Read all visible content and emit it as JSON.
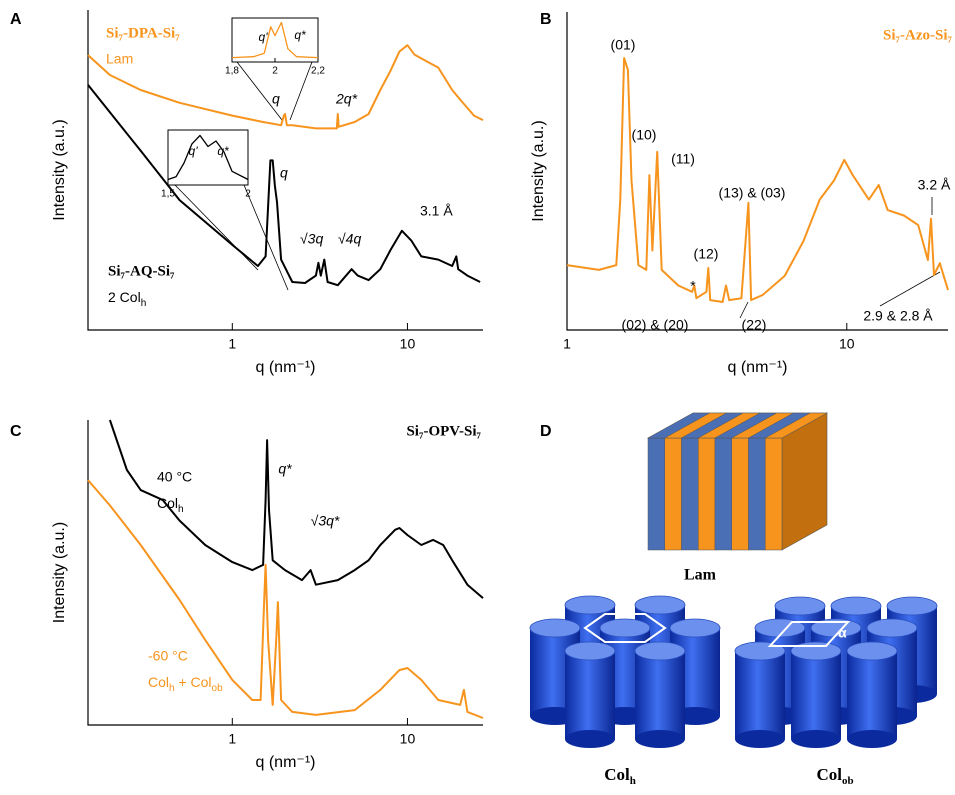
{
  "chart_data": [
    {
      "panel": "A",
      "type": "line",
      "xscale": "log",
      "xlim": [
        0.15,
        27
      ],
      "ylim": [
        0,
        100
      ],
      "xticks": [
        1,
        10
      ],
      "xlabel": "q (nm⁻¹)",
      "ylabel": "Intensity (a.u.)",
      "series": [
        {
          "name": "Si₇-DPA-Si₇",
          "color": "#f7941d",
          "x": [
            0.15,
            0.2,
            0.3,
            0.5,
            1,
            1.5,
            1.9,
            1.97,
            2.0,
            2.05,
            2.2,
            3,
            3.95,
            4,
            4.05,
            5,
            6,
            7,
            8,
            9,
            10,
            11,
            13,
            15,
            18,
            20,
            24,
            27
          ],
          "values": [
            85.9,
            79.7,
            75,
            71,
            67,
            65,
            64,
            67,
            67.5,
            64,
            64,
            63,
            63,
            67.5,
            63.5,
            65,
            67.5,
            75,
            81,
            87,
            89,
            86,
            83.8,
            82,
            75,
            72,
            67,
            65.6
          ]
        },
        {
          "name": "Si₇-AQ-Si₇",
          "color": "#000000",
          "x": [
            0.15,
            0.3,
            0.5,
            1,
            1.4,
            1.55,
            1.65,
            1.7,
            1.75,
            1.8,
            1.9,
            2.2,
            2.6,
            3.0,
            3.1,
            3.2,
            3.35,
            3.5,
            4,
            4.8,
            5.2,
            6,
            7,
            8,
            9.3,
            10.5,
            12,
            15,
            18,
            19,
            19.5,
            22,
            26
          ],
          "values": [
            76.6,
            56,
            40.6,
            26.6,
            20,
            23,
            53,
            53,
            45,
            40,
            22,
            15,
            14.7,
            17,
            21,
            17,
            22,
            15,
            14,
            19,
            17,
            15.6,
            19,
            25,
            31,
            28,
            23,
            22,
            20,
            23,
            19,
            17,
            15
          ]
        }
      ],
      "annotations": [
        {
          "text": "Lam"
        },
        {
          "runs": [
            {
              "text": "2 Col"
            },
            {
              "sub": "h"
            }
          ]
        },
        {
          "text": "q"
        },
        {
          "text": "2q*"
        },
        {
          "text": "q"
        },
        {
          "text": "√3q"
        },
        {
          "text": "√4q"
        },
        {
          "text": "3.1 Å"
        }
      ]
    },
    {
      "type": "line",
      "xlim": [
        1.8,
        2.2
      ],
      "ylim": [
        0,
        100
      ],
      "xticks": [
        {
          "value": 1.8,
          "label": "1,8"
        },
        2,
        {
          "value": 2.2,
          "label": "2,2"
        }
      ],
      "series": [
        {
          "color": "#f7941d",
          "x": [
            1.8,
            1.9,
            1.95,
            1.98,
            2.0,
            2.03,
            2.06,
            2.1,
            2.2
          ],
          "values": [
            10,
            12,
            20,
            80,
            60,
            90,
            30,
            12,
            10
          ]
        }
      ],
      "annotations": [
        {
          "text": "q'"
        },
        {
          "text": "q*"
        }
      ]
    },
    {
      "type": "line",
      "xlim": [
        1.5,
        2
      ],
      "ylim": [
        0,
        100
      ],
      "xticks": [
        {
          "value": 1.5,
          "label": "1,5"
        },
        2
      ],
      "series": [
        {
          "color": "#000000",
          "x": [
            1.5,
            1.55,
            1.6,
            1.65,
            1.7,
            1.75,
            1.8,
            1.85,
            1.9,
            2.0
          ],
          "values": [
            10,
            15,
            40,
            75,
            90,
            70,
            80,
            60,
            25,
            10
          ]
        }
      ],
      "annotations": [
        {
          "text": "q'"
        },
        {
          "text": "q*"
        }
      ]
    },
    {
      "panel": "B",
      "type": "line",
      "xscale": "log",
      "xlim": [
        1,
        23
      ],
      "ylim": [
        0,
        100
      ],
      "xticks": [
        1,
        10
      ],
      "xlabel": "q (nm⁻¹)",
      "ylabel": "Intensity (a.u.)",
      "series": [
        {
          "name": "Si₇-Azo-Si₇",
          "color": "#f7941d",
          "x": [
            1,
            1.3,
            1.5,
            1.55,
            1.6,
            1.65,
            1.7,
            1.8,
            1.92,
            1.97,
            2.02,
            2.1,
            2.18,
            2.5,
            2.8,
            2.85,
            2.9,
            3.15,
            3.2,
            3.25,
            3.6,
            3.7,
            3.8,
            4.2,
            4.45,
            4.55,
            5,
            6,
            7,
            8,
            9,
            9.8,
            10.5,
            12,
            13,
            14,
            16,
            18,
            19.5,
            20,
            20.5,
            21.5,
            23
          ],
          "values": [
            20.4,
            18.9,
            20.4,
            41,
            85.5,
            81.8,
            47,
            20.4,
            18.9,
            48.7,
            25,
            56,
            18.9,
            14,
            12,
            14,
            10,
            12,
            19.5,
            9.4,
            8.8,
            14,
            9.4,
            10,
            40,
            9.4,
            11,
            17,
            28,
            41,
            47,
            53.5,
            48.7,
            41,
            45.6,
            37.7,
            36,
            33,
            22,
            35,
            17.3,
            21,
            12.6
          ]
        }
      ],
      "annotations": [
        {
          "text": "(01)"
        },
        {
          "text": "(10)"
        },
        {
          "text": "(11)"
        },
        {
          "text": "(13) & (03)"
        },
        {
          "text": "(12)"
        },
        {
          "text": "*"
        },
        {
          "text": "(02) & (20)"
        },
        {
          "text": "(22)"
        },
        {
          "text": "3.2 Å"
        },
        {
          "text": "2.9 & 2.8 Å"
        }
      ]
    },
    {
      "panel": "C",
      "type": "line",
      "xscale": "log",
      "xlim": [
        0.15,
        27
      ],
      "ylim": [
        0,
        100
      ],
      "xticks": [
        1,
        10
      ],
      "title": "Si₇-OPV-Si₇",
      "xlabel": "q (nm⁻¹)",
      "ylabel": "Intensity (a.u.)",
      "series": [
        {
          "name": "40 °C",
          "color": "#000000",
          "x": [
            0.2,
            0.25,
            0.3,
            0.4,
            0.5,
            0.7,
            1,
            1.3,
            1.5,
            1.55,
            1.58,
            1.62,
            1.7,
            2,
            2.5,
            2.8,
            3,
            4,
            5,
            6,
            7,
            8.5,
            9,
            10,
            12,
            14,
            16,
            18,
            22,
            27
          ],
          "values": [
            100,
            83.6,
            77,
            73.8,
            67,
            59,
            53.4,
            50.8,
            52.5,
            73.8,
            93.4,
            70.5,
            54,
            50.8,
            47.5,
            50.8,
            46,
            47.5,
            50.8,
            54,
            59,
            64,
            64.6,
            62.3,
            59,
            60.7,
            59,
            54,
            46,
            41.6
          ]
        },
        {
          "name": "-60 °C",
          "color": "#f7941d",
          "x": [
            0.15,
            0.2,
            0.3,
            0.5,
            0.7,
            1,
            1.3,
            1.45,
            1.52,
            1.55,
            1.6,
            1.7,
            1.78,
            1.82,
            1.9,
            2.2,
            3,
            5,
            7,
            9,
            10,
            12,
            15,
            20,
            21,
            22,
            27
          ],
          "values": [
            80.3,
            72,
            59,
            41,
            27.9,
            14.8,
            8.2,
            8.2,
            41,
            52.5,
            27.9,
            6.6,
            27.9,
            40.3,
            8.2,
            4.3,
            3.3,
            4.9,
            11.5,
            18,
            18.7,
            14.8,
            8.2,
            6.6,
            11.5,
            4.3,
            2.3
          ]
        }
      ],
      "annotations": [
        {
          "runs": [
            {
              "text": "Col"
            },
            {
              "sub": "h"
            }
          ]
        },
        {
          "text": "q*"
        },
        {
          "text": "√3q*"
        },
        {
          "runs": [
            {
              "text": "Col"
            },
            {
              "sub": "h"
            },
            {
              "text": " + Col"
            },
            {
              "sub": "ob"
            }
          ]
        }
      ]
    }
  ],
  "diagram": {
    "panel": "D",
    "lam": "Lam",
    "colh": {
      "text": "Col",
      "sub": "h"
    },
    "colob": {
      "text": "Col",
      "sub": "ob"
    },
    "angle": "α"
  }
}
